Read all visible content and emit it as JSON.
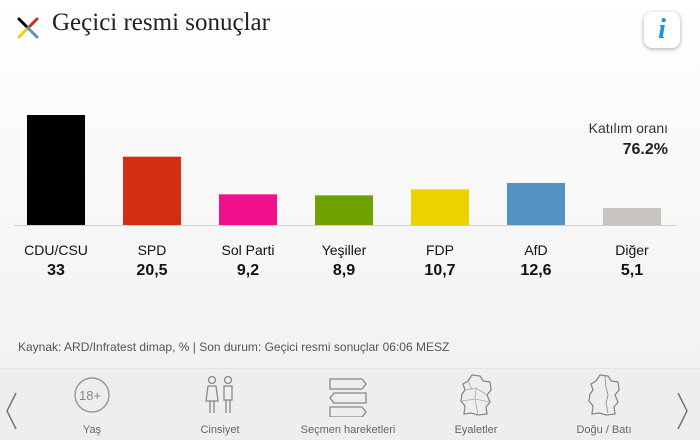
{
  "header": {
    "title": "Geçici resmi sonuçlar",
    "info_icon": "info-icon",
    "info_glyph": "i"
  },
  "turnout": {
    "label": "Katılım oranı",
    "value": "76.2%"
  },
  "chart_data": {
    "type": "bar",
    "categories": [
      "CDU/CSU",
      "SPD",
      "Sol Parti",
      "Yeşiller",
      "FDP",
      "AfD",
      "Diğer"
    ],
    "values": [
      33,
      20.5,
      9.2,
      8.9,
      10.7,
      12.6,
      5.1
    ],
    "value_labels": [
      "33",
      "20,5",
      "9,2",
      "8,9",
      "10,7",
      "12,6",
      "5,1"
    ],
    "colors": [
      "#000000",
      "#d42e12",
      "#f0108c",
      "#6fa100",
      "#eed200",
      "#5592c4",
      "#c8c5c0"
    ],
    "title": "",
    "xlabel": "",
    "ylabel": "",
    "ylim": [
      0,
      33
    ],
    "grid": false,
    "legend": "none"
  },
  "source": "Kaynak: ARD/Infratest dimap, % | Son durum: Geçici resmi sonuçlar 06:06 MESZ",
  "footer": {
    "items": [
      {
        "label": "Yaş",
        "icon": "age-18-icon",
        "badge": "18+"
      },
      {
        "label": "Cinsiyet",
        "icon": "gender-icon"
      },
      {
        "label": "Seçmen hareketleri",
        "icon": "voter-flow-icon"
      },
      {
        "label": "Eyaletler",
        "icon": "germany-states-map-icon"
      },
      {
        "label": "Doğu / Batı",
        "icon": "germany-east-west-map-icon"
      }
    ],
    "prev_icon": "chevron-left-icon",
    "next_icon": "chevron-right-icon"
  }
}
